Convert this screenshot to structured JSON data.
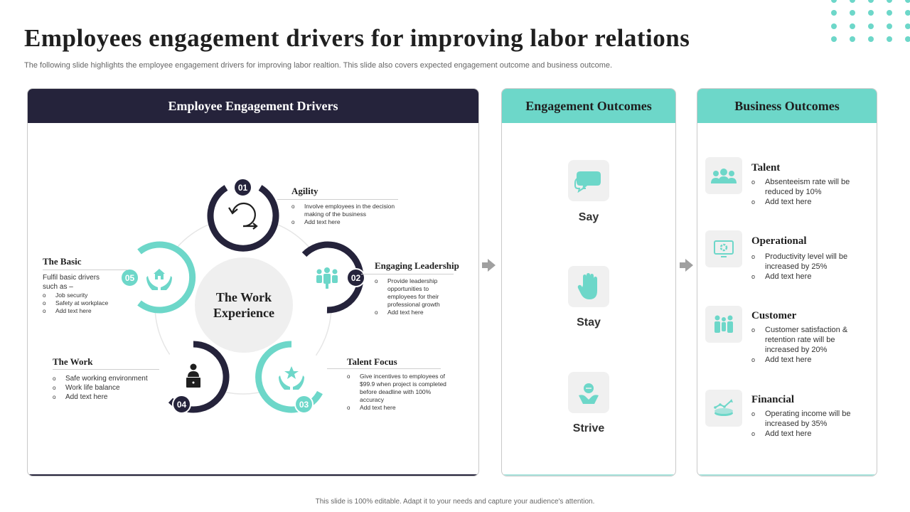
{
  "title": "Employees engagement drivers for improving labor relations",
  "subtitle": "The following slide highlights the employee engagement drivers for improving  labor realtion. This slide also covers expected engagement outcome and business outcome.",
  "footer": "This slide is 100% editable.  Adapt it to your needs and capture your audience's attention.",
  "colors": {
    "dark": "#25233b",
    "teal": "#6dd7c9",
    "icon_bg": "#f0f0f0"
  },
  "drivers_panel": {
    "header": "Employee Engagement Drivers",
    "center": "The Work Experience",
    "items": [
      {
        "number": "01",
        "title": "Agility",
        "icon": "agility-cycle-icon",
        "points": [
          "Involve employees in the decision making of the business",
          "Add text here"
        ]
      },
      {
        "number": "02",
        "title": "Engaging Leadership",
        "icon": "team-leader-icon",
        "points": [
          "Provide leadership opportunities to employees for their professional growth",
          "Add text here"
        ]
      },
      {
        "number": "03",
        "title": "Talent Focus",
        "icon": "hands-star-icon",
        "points": [
          "Give incentives to employees of $99.9 when project is completed before deadline with 100% accuracy",
          "Add text here"
        ]
      },
      {
        "number": "04",
        "title": "The Work",
        "icon": "worker-desk-icon",
        "points": [
          "Safe working environment",
          "Work life balance",
          "Add text here"
        ]
      },
      {
        "number": "05",
        "title": "The Basic",
        "icon": "hands-house-icon",
        "intro": "Fulfil basic drivers such as –",
        "points": [
          "Job security",
          "Safety at workplace",
          "Add text here"
        ]
      }
    ]
  },
  "engagement_panel": {
    "header": "Engagement Outcomes",
    "items": [
      {
        "label": "Say",
        "icon": "speech-bubbles-icon"
      },
      {
        "label": "Stay",
        "icon": "raised-hand-icon"
      },
      {
        "label": "Strive",
        "icon": "striving-person-icon"
      }
    ]
  },
  "business_panel": {
    "header": "Business Outcomes",
    "items": [
      {
        "title": "Talent",
        "icon": "people-group-icon",
        "points": [
          "Absenteeism rate will be reduced by 10%",
          "Add text here"
        ]
      },
      {
        "title": "Operational",
        "icon": "gear-screen-icon",
        "points": [
          "Productivity level will be increased by 25%",
          "Add text here"
        ]
      },
      {
        "title": "Customer",
        "icon": "customers-icon",
        "points": [
          "Customer satisfaction & retention rate will be increased by 20%",
          "Add text here"
        ]
      },
      {
        "title": "Financial",
        "icon": "growth-coins-icon",
        "points": [
          "Operating income will be increased by 35%",
          "Add text here"
        ]
      }
    ]
  }
}
